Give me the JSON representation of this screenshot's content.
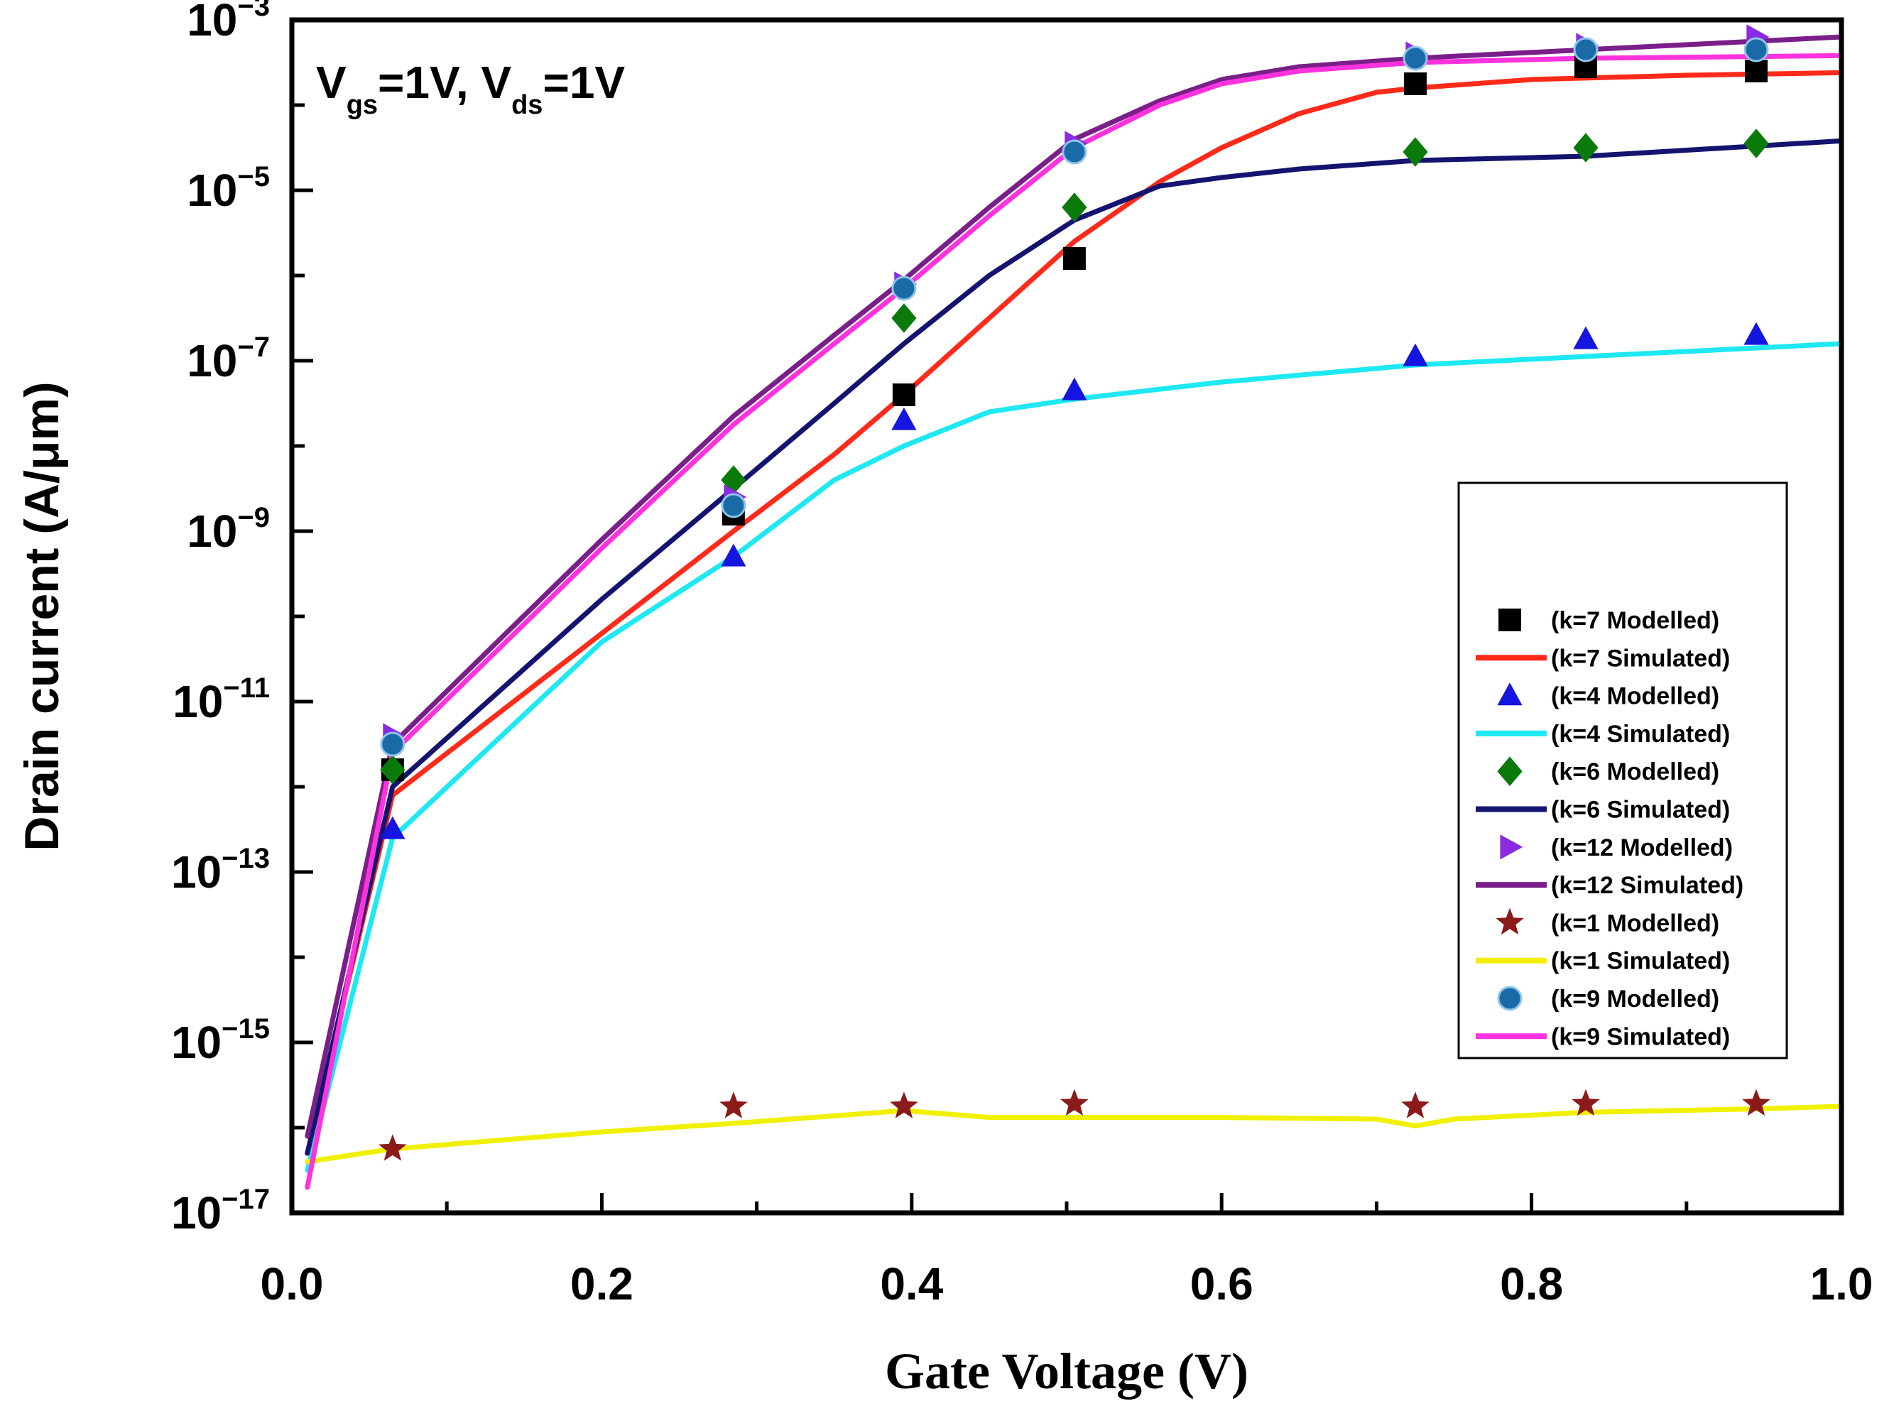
{
  "chart_data": {
    "type": "line",
    "title": "",
    "annotation": {
      "v1": "V",
      "sub1": "gs",
      "mid": "=1V, V",
      "sub2": "ds",
      "end": "=1V"
    },
    "xlabel": "Gate Voltage (V)",
    "ylabel": "Drain current (A/μm)",
    "xlim": [
      0.0,
      1.0
    ],
    "ylim_log10": [
      -17,
      -3
    ],
    "xticks": [
      "0.0",
      "0.2",
      "0.4",
      "0.6",
      "0.8",
      "1.0"
    ],
    "yticks": [
      {
        "base": "10",
        "exp": "−3",
        "value": -3
      },
      {
        "base": "10",
        "exp": "−5",
        "value": -5
      },
      {
        "base": "10",
        "exp": "−7",
        "value": -7
      },
      {
        "base": "10",
        "exp": "−9",
        "value": -9
      },
      {
        "base": "10",
        "exp": "−11",
        "value": -11
      },
      {
        "base": "10",
        "exp": "−13",
        "value": -13
      },
      {
        "base": "10",
        "exp": "−15",
        "value": -15
      },
      {
        "base": "10",
        "exp": "−17",
        "value": -17
      }
    ],
    "modelled_x": [
      0.01,
      0.065,
      0.285,
      0.395,
      0.505,
      0.725,
      0.835,
      0.945
    ],
    "series": [
      {
        "name": "(k=7 Modelled)",
        "kind": "marker",
        "marker": "square",
        "color": "#000000",
        "x": [
          0.065,
          0.285,
          0.395,
          0.505,
          0.725,
          0.835,
          0.945
        ],
        "log10_y": [
          -11.8,
          -8.8,
          -7.4,
          -5.8,
          -3.75,
          -3.55,
          -3.6
        ]
      },
      {
        "name": "(k=7 Simulated)",
        "kind": "line",
        "color": "#ff2a1a",
        "x": [
          0.01,
          0.065,
          0.2,
          0.285,
          0.35,
          0.395,
          0.45,
          0.505,
          0.56,
          0.6,
          0.65,
          0.7,
          0.725,
          0.8,
          0.9,
          1.0
        ],
        "log10_y": [
          -16.3,
          -12.1,
          -10.2,
          -9.0,
          -8.1,
          -7.4,
          -6.5,
          -5.6,
          -4.9,
          -4.5,
          -4.1,
          -3.85,
          -3.8,
          -3.7,
          -3.65,
          -3.62
        ]
      },
      {
        "name": "(k=4 Modelled)",
        "kind": "marker",
        "marker": "triangle-up",
        "color": "#1515e0",
        "x": [
          0.065,
          0.285,
          0.395,
          0.505,
          0.725,
          0.835,
          0.945
        ],
        "log10_y": [
          -12.5,
          -9.3,
          -7.7,
          -7.35,
          -6.95,
          -6.75,
          -6.7
        ]
      },
      {
        "name": "(k=4 Simulated)",
        "kind": "line",
        "color": "#1ee8f2",
        "x": [
          0.01,
          0.065,
          0.2,
          0.285,
          0.35,
          0.395,
          0.45,
          0.505,
          0.6,
          0.725,
          0.835,
          1.0
        ],
        "log10_y": [
          -16.5,
          -12.6,
          -10.3,
          -9.3,
          -8.4,
          -8.0,
          -7.6,
          -7.45,
          -7.25,
          -7.05,
          -6.95,
          -6.8
        ]
      },
      {
        "name": "(k=6 Modelled)",
        "kind": "marker",
        "marker": "diamond",
        "color": "#0a7a0a",
        "x": [
          0.065,
          0.285,
          0.395,
          0.505,
          0.725,
          0.835,
          0.945
        ],
        "log10_y": [
          -11.8,
          -8.4,
          -6.5,
          -5.2,
          -4.55,
          -4.5,
          -4.45
        ]
      },
      {
        "name": "(k=6 Simulated)",
        "kind": "line",
        "color": "#141470",
        "x": [
          0.01,
          0.065,
          0.2,
          0.285,
          0.35,
          0.395,
          0.45,
          0.505,
          0.56,
          0.6,
          0.65,
          0.725,
          0.835,
          1.0
        ],
        "log10_y": [
          -16.3,
          -12.0,
          -9.8,
          -8.5,
          -7.5,
          -6.8,
          -6.0,
          -5.35,
          -4.95,
          -4.85,
          -4.75,
          -4.65,
          -4.6,
          -4.42
        ]
      },
      {
        "name": "(k=12 Modelled)",
        "kind": "marker",
        "marker": "triangle-right",
        "color": "#8a2be2",
        "x": [
          0.065,
          0.285,
          0.395,
          0.505,
          0.725,
          0.835,
          0.945
        ],
        "log10_y": [
          -11.4,
          -8.6,
          -6.1,
          -4.45,
          -3.4,
          -3.3,
          -3.2
        ]
      },
      {
        "name": "(k=12 Simulated)",
        "kind": "line",
        "color": "#7a1f8a",
        "x": [
          0.01,
          0.065,
          0.2,
          0.285,
          0.35,
          0.395,
          0.45,
          0.505,
          0.56,
          0.6,
          0.65,
          0.725,
          0.835,
          1.0
        ],
        "log10_y": [
          -16.1,
          -11.5,
          -9.1,
          -7.65,
          -6.7,
          -6.05,
          -5.2,
          -4.4,
          -3.95,
          -3.7,
          -3.55,
          -3.45,
          -3.35,
          -3.2
        ]
      },
      {
        "name": "(k=1 Modelled)",
        "kind": "marker",
        "marker": "star",
        "color": "#8b1a1a",
        "x": [
          0.065,
          0.285,
          0.395,
          0.505,
          0.725,
          0.835,
          0.945
        ],
        "log10_y": [
          -16.25,
          -15.75,
          -15.75,
          -15.72,
          -15.75,
          -15.72,
          -15.72
        ]
      },
      {
        "name": "(k=1 Simulated)",
        "kind": "line",
        "color": "#f0f000",
        "x": [
          0.01,
          0.065,
          0.2,
          0.285,
          0.395,
          0.45,
          0.505,
          0.6,
          0.7,
          0.725,
          0.75,
          0.835,
          0.945,
          1.0
        ],
        "log10_y": [
          -16.4,
          -16.25,
          -16.05,
          -15.95,
          -15.8,
          -15.88,
          -15.88,
          -15.88,
          -15.9,
          -15.98,
          -15.9,
          -15.82,
          -15.78,
          -15.75
        ]
      },
      {
        "name": "(k=9 Modelled)",
        "kind": "marker",
        "marker": "circle",
        "color": "#1a6aa8",
        "x": [
          0.065,
          0.285,
          0.395,
          0.505,
          0.725,
          0.835,
          0.945
        ],
        "log10_y": [
          -11.5,
          -8.7,
          -6.15,
          -4.55,
          -3.45,
          -3.35,
          -3.35
        ]
      },
      {
        "name": "(k=9 Simulated)",
        "kind": "line",
        "color": "#ff33dd",
        "x": [
          0.01,
          0.065,
          0.2,
          0.285,
          0.35,
          0.395,
          0.45,
          0.505,
          0.56,
          0.6,
          0.65,
          0.725,
          0.835,
          1.0
        ],
        "log10_y": [
          -16.7,
          -11.6,
          -9.2,
          -7.75,
          -6.8,
          -6.15,
          -5.3,
          -4.5,
          -4.0,
          -3.75,
          -3.6,
          -3.5,
          -3.45,
          -3.42
        ]
      }
    ],
    "legend": {
      "placement": "lower-right"
    }
  }
}
